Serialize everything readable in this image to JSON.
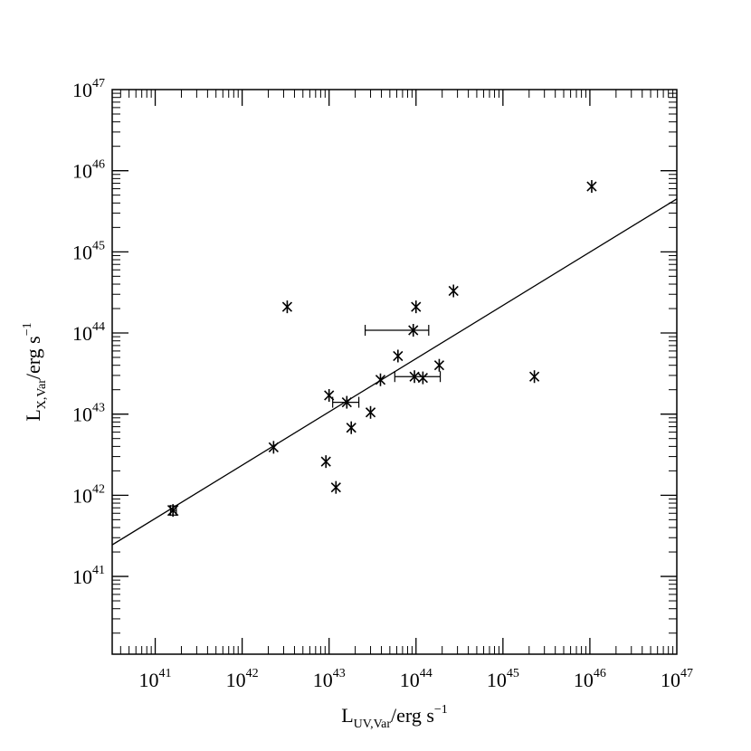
{
  "chart_data": {
    "type": "scatter",
    "title": "",
    "xlabel": {
      "main": "L",
      "sub": "UV,Var",
      "tail": "/erg s",
      "sup": "−1"
    },
    "ylabel": {
      "main": "L",
      "sub": "X,Var",
      "tail": "/erg s",
      "sup": "−1"
    },
    "x_scale": "log",
    "y_scale": "log",
    "xlim": [
      3.2e+40,
      1e+47
    ],
    "ylim": [
      1.1e+40,
      1e+47
    ],
    "x_ticks": [
      {
        "base": "10",
        "exp": "41",
        "value": 1e+41
      },
      {
        "base": "10",
        "exp": "42",
        "value": 1e+42
      },
      {
        "base": "10",
        "exp": "43",
        "value": 1e+43
      },
      {
        "base": "10",
        "exp": "44",
        "value": 1e+44
      },
      {
        "base": "10",
        "exp": "45",
        "value": 1e+45
      },
      {
        "base": "10",
        "exp": "46",
        "value": 1e+46
      },
      {
        "base": "10",
        "exp": "47",
        "value": 1e+47
      }
    ],
    "y_ticks": [
      {
        "base": "10",
        "exp": "41",
        "value": 1e+41
      },
      {
        "base": "10",
        "exp": "42",
        "value": 1e+42
      },
      {
        "base": "10",
        "exp": "43",
        "value": 1e+43
      },
      {
        "base": "10",
        "exp": "44",
        "value": 1e+44
      },
      {
        "base": "10",
        "exp": "45",
        "value": 1e+45
      },
      {
        "base": "10",
        "exp": "46",
        "value": 1e+46
      },
      {
        "base": "10",
        "exp": "47",
        "value": 1e+47
      }
    ],
    "fit_line": {
      "x": [
        3.2e+40,
        1e+47
      ],
      "y": [
        2.45e+41,
        4.5e+45
      ]
    },
    "points": [
      {
        "x": 1.6e+41,
        "y": 6.5e+41,
        "xerr": [
          1.5e+41,
          1.75e+41
        ],
        "yerr": [
          5.7e+41,
          7.4e+41
        ]
      },
      {
        "x": 2.3e+42,
        "y": 3.9e+42
      },
      {
        "x": 3.3e+42,
        "y": 2.1e+44
      },
      {
        "x": 9.2e+42,
        "y": 2.6e+42
      },
      {
        "x": 1e+43,
        "y": 1.7e+43
      },
      {
        "x": 1.2e+43,
        "y": 1.25e+42
      },
      {
        "x": 1.6e+43,
        "y": 1.4e+43,
        "xerr": [
          1.1e+43,
          2.2e+43
        ]
      },
      {
        "x": 1.8e+43,
        "y": 6.8e+42
      },
      {
        "x": 3e+43,
        "y": 1.05e+43
      },
      {
        "x": 3.9e+43,
        "y": 2.65e+43
      },
      {
        "x": 6.2e+43,
        "y": 5.2e+43
      },
      {
        "x": 9.3e+43,
        "y": 1.08e+44,
        "xerr": [
          2.6e+43,
          1.4e+44
        ]
      },
      {
        "x": 1e+44,
        "y": 2.1e+44
      },
      {
        "x": 9.6e+43,
        "y": 2.9e+43,
        "xerr": [
          5.7e+43,
          1.9e+44
        ]
      },
      {
        "x": 1.2e+44,
        "y": 2.8e+43
      },
      {
        "x": 1.85e+44,
        "y": 4e+43
      },
      {
        "x": 2.7e+44,
        "y": 3.3e+44
      },
      {
        "x": 2.3e+45,
        "y": 2.9e+43
      },
      {
        "x": 1.05e+46,
        "y": 6.4e+45
      }
    ],
    "marker": "asterisk",
    "grid": false,
    "legend": "none",
    "color": "#000000"
  }
}
